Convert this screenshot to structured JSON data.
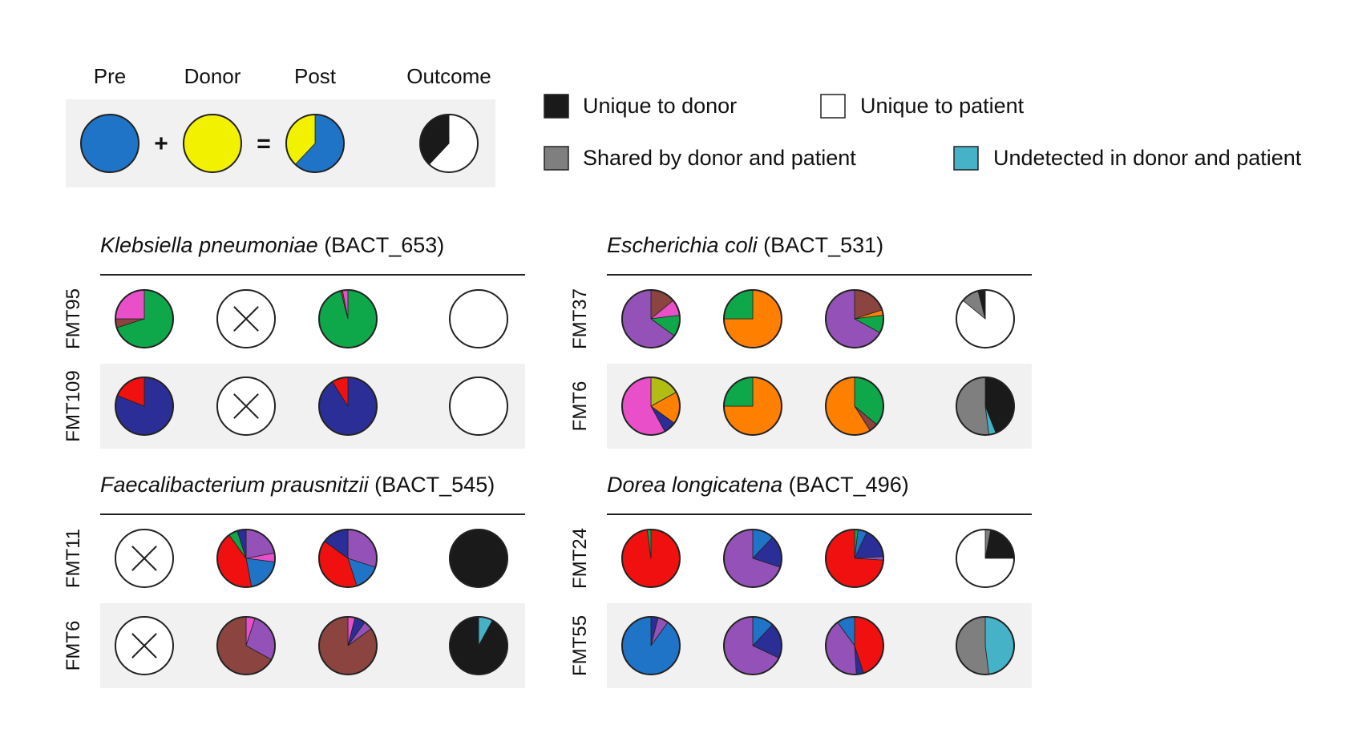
{
  "colors": {
    "blue": "#1f74c8",
    "yellow": "#f2f200",
    "green": "#0ea84a",
    "pink": "#e94fc8",
    "brown": "#8b4440",
    "navy": "#2b2e96",
    "red": "#f01010",
    "purple": "#9452b8",
    "orange": "#ff8000",
    "olive": "#b2bd14",
    "black": "#1a1a1a",
    "gray": "#7f7f7f",
    "cyan": "#45b2c8",
    "white": "#ffffff",
    "panel_bg": "#f1f1f1"
  },
  "schema": {
    "headers": [
      "Pre",
      "Donor",
      "Post",
      "Outcome"
    ],
    "plus": "+",
    "equals": "=",
    "pre": [
      [
        "blue",
        1
      ]
    ],
    "donor": [
      [
        "yellow",
        1
      ]
    ],
    "post": [
      [
        "blue",
        0.62
      ],
      [
        "yellow",
        0.38
      ]
    ],
    "outcome": [
      [
        "white",
        0.62
      ],
      [
        "black",
        0.38
      ]
    ]
  },
  "legend": [
    {
      "label": "Unique to donor",
      "color": "black"
    },
    {
      "label": "Unique to patient",
      "color": "white"
    },
    {
      "label": "Shared by donor and patient",
      "color": "gray"
    },
    {
      "label": "Undetected in donor and patient",
      "color": "cyan"
    }
  ],
  "panels": [
    {
      "species": "Klebsiella pneumoniae",
      "id": " (BACT_653)",
      "rows": [
        {
          "label": "FMT95",
          "pre": [
            [
              "green",
              0.7
            ],
            [
              "brown",
              0.05
            ],
            [
              "pink",
              0.25
            ]
          ],
          "donor": null,
          "post": [
            [
              "green",
              0.96
            ],
            [
              "brown",
              0.01
            ],
            [
              "pink",
              0.03
            ]
          ],
          "outcome": [
            [
              "white",
              1
            ]
          ]
        },
        {
          "label": "FMT109",
          "pre": [
            [
              "navy",
              0.81
            ],
            [
              "red",
              0.19
            ]
          ],
          "donor": null,
          "post": [
            [
              "navy",
              0.91
            ],
            [
              "red",
              0.09
            ]
          ],
          "outcome": [
            [
              "white",
              1
            ]
          ]
        }
      ]
    },
    {
      "species": "Escherichia coli",
      "id": " (BACT_531)",
      "rows": [
        {
          "label": "FMT37",
          "pre": [
            [
              "brown",
              0.14
            ],
            [
              "pink",
              0.09
            ],
            [
              "green",
              0.12
            ],
            [
              "purple",
              0.65
            ]
          ],
          "donor": [
            [
              "orange",
              0.75
            ],
            [
              "green",
              0.25
            ]
          ],
          "post": [
            [
              "brown",
              0.2
            ],
            [
              "orange",
              0.03
            ],
            [
              "green",
              0.1
            ],
            [
              "purple",
              0.67
            ]
          ],
          "outcome": [
            [
              "white",
              0.86
            ],
            [
              "gray",
              0.1
            ],
            [
              "black",
              0.04
            ]
          ]
        },
        {
          "label": "FMT6",
          "pre": [
            [
              "olive",
              0.17
            ],
            [
              "orange",
              0.18
            ],
            [
              "navy",
              0.07
            ],
            [
              "pink",
              0.58
            ]
          ],
          "donor": [
            [
              "orange",
              0.75
            ],
            [
              "green",
              0.25
            ]
          ],
          "post": [
            [
              "green",
              0.36
            ],
            [
              "brown",
              0.05
            ],
            [
              "orange",
              0.59
            ]
          ],
          "outcome": [
            [
              "black",
              0.44
            ],
            [
              "cyan",
              0.04
            ],
            [
              "gray",
              0.52
            ]
          ]
        }
      ]
    },
    {
      "species": "Faecalibacterium prausnitzii",
      "id": " (BACT_545)",
      "rows": [
        {
          "label": "FMT11",
          "pre": null,
          "donor": [
            [
              "purple",
              0.22
            ],
            [
              "pink",
              0.05
            ],
            [
              "blue",
              0.2
            ],
            [
              "red",
              0.43
            ],
            [
              "green",
              0.05
            ],
            [
              "navy",
              0.05
            ]
          ],
          "post": [
            [
              "purple",
              0.3
            ],
            [
              "blue",
              0.15
            ],
            [
              "red",
              0.4
            ],
            [
              "navy",
              0.15
            ]
          ],
          "outcome": [
            [
              "black",
              1
            ]
          ]
        },
        {
          "label": "FMT6",
          "pre": null,
          "donor": [
            [
              "pink",
              0.05
            ],
            [
              "purple",
              0.28
            ],
            [
              "brown",
              0.67
            ]
          ],
          "post": [
            [
              "pink",
              0.04
            ],
            [
              "navy",
              0.06
            ],
            [
              "purple",
              0.05
            ],
            [
              "brown",
              0.85
            ]
          ],
          "outcome": [
            [
              "cyan",
              0.08
            ],
            [
              "black",
              0.92
            ]
          ]
        }
      ]
    },
    {
      "species": "Dorea longicatena",
      "id": " (BACT_496)",
      "rows": [
        {
          "label": "FMT24",
          "pre": [
            [
              "red",
              0.98
            ],
            [
              "green",
              0.02
            ]
          ],
          "donor": [
            [
              "blue",
              0.12
            ],
            [
              "navy",
              0.18
            ],
            [
              "purple",
              0.7
            ]
          ],
          "post": [
            [
              "green",
              0.02
            ],
            [
              "blue",
              0.05
            ],
            [
              "navy",
              0.17
            ],
            [
              "purple",
              0.02
            ],
            [
              "red",
              0.74
            ]
          ],
          "outcome": [
            [
              "gray",
              0.03
            ],
            [
              "black",
              0.22
            ],
            [
              "white",
              0.75
            ]
          ]
        },
        {
          "label": "FMT55",
          "pre": [
            [
              "navy",
              0.04
            ],
            [
              "purple",
              0.06
            ],
            [
              "blue",
              0.9
            ]
          ],
          "donor": [
            [
              "blue",
              0.12
            ],
            [
              "navy",
              0.2
            ],
            [
              "purple",
              0.68
            ]
          ],
          "post": [
            [
              "red",
              0.45
            ],
            [
              "navy",
              0.04
            ],
            [
              "purple",
              0.41
            ],
            [
              "blue",
              0.1
            ]
          ],
          "outcome": [
            [
              "cyan",
              0.48
            ],
            [
              "gray",
              0.52
            ]
          ]
        }
      ]
    }
  ]
}
